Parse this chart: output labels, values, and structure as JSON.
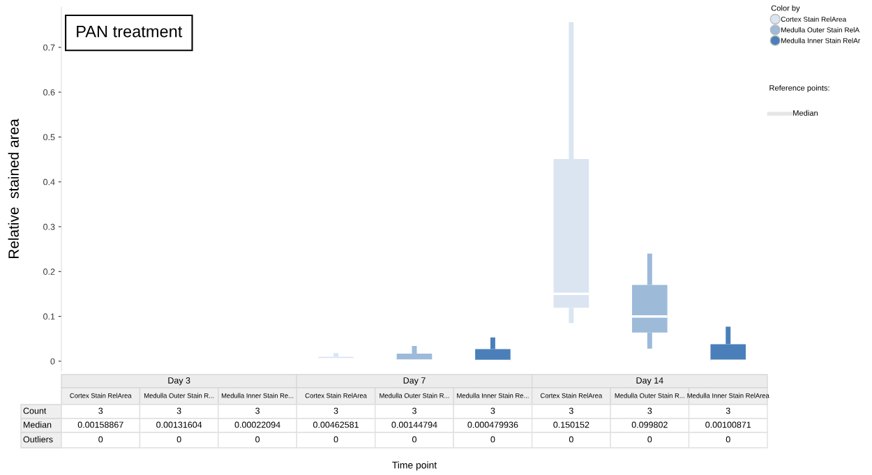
{
  "chart_data": {
    "type": "box",
    "title": "PAN treatment",
    "ylabel": "Relative  stained area",
    "legend_title": "Color by",
    "categories": [
      "Day 3",
      "Day 7",
      "Day 14"
    ],
    "series": [
      {
        "name": "Cortex Stain RelArea",
        "color": "#dae5f1",
        "boxes": [
          {
            "low": 0.001,
            "q1": 0.0012,
            "median": 0.00158867,
            "q3": 0.002,
            "high": 0.0025
          },
          {
            "low": 0.003,
            "q1": 0.0035,
            "median": 0.00462581,
            "q3": 0.01,
            "high": 0.018
          },
          {
            "low": 0.085,
            "q1": 0.119,
            "median": 0.150152,
            "q3": 0.451,
            "high": 0.756
          }
        ]
      },
      {
        "name": "Medulla Outer Stain RelA",
        "color": "#9dbad9",
        "boxes": [
          {
            "low": 0.001,
            "q1": 0.0011,
            "median": 0.00131604,
            "q3": 0.0018,
            "high": 0.0022
          },
          {
            "low": 0.001,
            "q1": 0.0012,
            "median": 0.00144794,
            "q3": 0.017,
            "high": 0.034
          },
          {
            "low": 0.028,
            "q1": 0.064,
            "median": 0.099802,
            "q3": 0.17,
            "high": 0.24
          }
        ]
      },
      {
        "name": "Medulla Inner Stain RelAr",
        "color": "#4a7fba",
        "boxes": [
          {
            "low": 0.0001,
            "q1": 0.00015,
            "median": 0.00022094,
            "q3": 0.0004,
            "high": 0.0006
          },
          {
            "low": 0.0003,
            "q1": 0.0004,
            "median": 0.000479936,
            "q3": 0.027,
            "high": 0.053
          },
          {
            "low": 0.0005,
            "q1": 0.0007,
            "median": 0.00100871,
            "q3": 0.038,
            "high": 0.077
          }
        ]
      }
    ],
    "ylim": [
      -0.022,
      0.79
    ],
    "yticks": [
      0,
      0.1,
      0.2,
      0.3,
      0.4,
      0.5,
      0.6,
      0.7
    ],
    "tick_labels": "y",
    "grid": false,
    "legend": "top right",
    "annotations": [
      "Reference points:",
      "Median",
      "Cortex Stain RelArea",
      "Medulla Outer Stain R...",
      "Medulla Inner Stain Re...",
      "Cortex Stain RelArea",
      "Medulla Outer Stain R...",
      "Medulla Inner Stain Re...",
      "Cortex Stain RelArea",
      "Medulla Outer Stain R...",
      "Medulla Inner Stain RelArea",
      "Count",
      "3",
      "3",
      "3",
      "3",
      "3",
      "3",
      "3",
      "3",
      "3",
      "Median",
      "0.00158867",
      "0.00131604",
      "0.00022094",
      "0.00462581",
      "0.00144794",
      "0.000479936",
      "0.150152",
      "0.099802",
      "0.00100871",
      "Outliers",
      "0",
      "0",
      "0",
      "0",
      "0",
      "0",
      "0",
      "0",
      "0",
      "Time point"
    ]
  }
}
